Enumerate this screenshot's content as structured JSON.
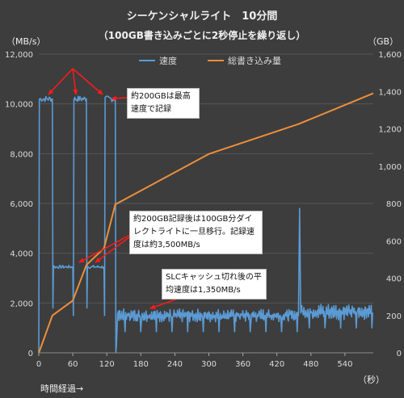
{
  "chart_data": {
    "type": "line",
    "title": "シーケンシャルライト　10分間",
    "subtitle": "（100GB書き込みごとに2秒停止を繰り返し）",
    "y_left_unit": "（MB/s）",
    "y_right_unit": "（GB）",
    "x_unit": "（秒）",
    "xlabel": "時間経過→",
    "xlim": [
      0,
      590
    ],
    "ylim_left": [
      0,
      12000
    ],
    "ylim_right": [
      0,
      1600
    ],
    "x_ticks": [
      "0",
      "60",
      "120",
      "180",
      "240",
      "300",
      "360",
      "420",
      "480",
      "540"
    ],
    "y_left_ticks": [
      "0",
      "2,000",
      "4,000",
      "6,000",
      "8,000",
      "10,000",
      "12,000"
    ],
    "y_right_ticks": [
      "0",
      "200",
      "400",
      "600",
      "800",
      "1,000",
      "1,200",
      "1,400",
      "1,600"
    ],
    "legend_position": "top",
    "series": [
      {
        "name": "速度",
        "color": "#5b9bd5",
        "axis": "left",
        "segments": [
          {
            "kind": "spike",
            "x": [
              0,
              1,
              2
            ],
            "y": [
              0,
              10200,
              10200
            ]
          },
          {
            "kind": "pulse",
            "x0": 2,
            "x1": 24,
            "level": 10200,
            "amp": 120
          },
          {
            "kind": "drop",
            "x": [
              24,
              25,
              26
            ],
            "y": [
              10200,
              1800,
              3500
            ]
          },
          {
            "kind": "pulse",
            "x0": 26,
            "x1": 60,
            "level": 3450,
            "amp": 60
          },
          {
            "kind": "drop",
            "x": [
              60,
              61,
              62
            ],
            "y": [
              3450,
              1500,
              10200
            ]
          },
          {
            "kind": "pulse",
            "x0": 62,
            "x1": 84,
            "level": 10200,
            "amp": 120
          },
          {
            "kind": "drop",
            "x": [
              84,
              85,
              86
            ],
            "y": [
              10200,
              1800,
              3500
            ]
          },
          {
            "kind": "pulse",
            "x0": 86,
            "x1": 115,
            "level": 3450,
            "amp": 60
          },
          {
            "kind": "drop",
            "x": [
              115,
              116,
              117
            ],
            "y": [
              3450,
              1500,
              10200
            ]
          },
          {
            "kind": "pulse",
            "x0": 117,
            "x1": 135,
            "level": 10200,
            "amp": 120
          },
          {
            "kind": "drop",
            "x": [
              135,
              136,
              137,
              139
            ],
            "y": [
              10200,
              0,
              300,
              1500
            ]
          },
          {
            "kind": "noise",
            "x0": 139,
            "x1": 458,
            "level": 1500,
            "amp": 250
          },
          {
            "kind": "spike",
            "x": [
              458,
              460,
              462,
              464
            ],
            "y": [
              1500,
              5800,
              1600,
              1900
            ]
          },
          {
            "kind": "noise",
            "x0": 464,
            "x1": 590,
            "level": 1650,
            "amp": 300
          }
        ]
      },
      {
        "name": "総書き込み量",
        "color": "#ed8f3b",
        "axis": "right",
        "x": [
          0,
          2,
          24,
          60,
          84,
          115,
          135,
          300,
          458,
          590
        ],
        "y": [
          0,
          15,
          200,
          280,
          470,
          560,
          795,
          1065,
          1225,
          1390
        ]
      }
    ],
    "annotations": [
      {
        "text": "約200GBは最高速度で記録"
      },
      {
        "text": "約200GB記録後は100GB分ダイレクトライトに一旦移行。記録速度は約3,500MB/s"
      },
      {
        "text": "SLCキャッシュ切れ後の平均速度は1,350MB/s"
      }
    ]
  }
}
